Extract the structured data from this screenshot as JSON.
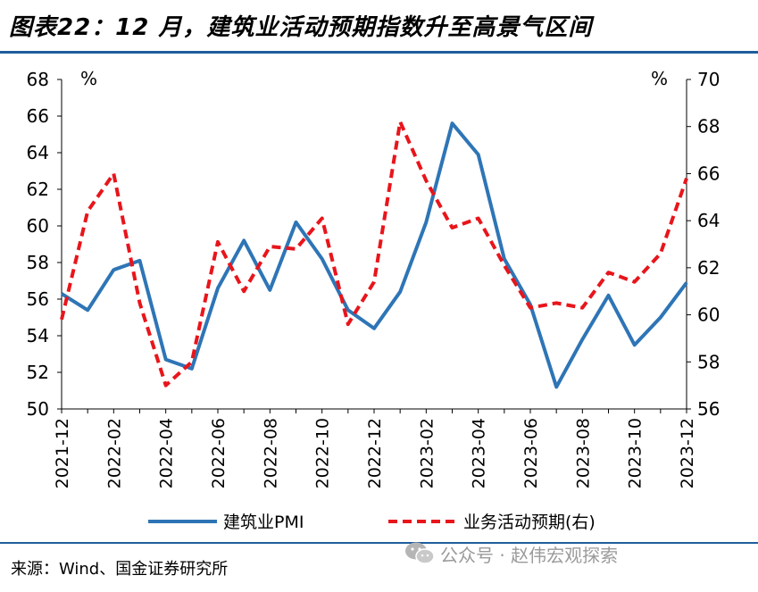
{
  "page": {
    "title": "图表22：12 月，建筑业活动预期指数升至高景气区间",
    "source": "来源：Wind、国金证券研究所",
    "watermark": "公众号 · 赵伟宏观探索",
    "watermark_icon": "wechat-bubble-icon"
  },
  "chart_data": {
    "type": "line",
    "x": [
      "2021-12",
      "2022-01",
      "2022-02",
      "2022-03",
      "2022-04",
      "2022-05",
      "2022-06",
      "2022-07",
      "2022-08",
      "2022-09",
      "2022-10",
      "2022-11",
      "2022-12",
      "2023-01",
      "2023-02",
      "2023-03",
      "2023-04",
      "2023-05",
      "2023-06",
      "2023-07",
      "2023-08",
      "2023-09",
      "2023-10",
      "2023-11",
      "2023-12"
    ],
    "x_tick_labels": [
      "2021-12",
      "2022-02",
      "2022-04",
      "2022-06",
      "2022-08",
      "2022-10",
      "2022-12",
      "2023-02",
      "2023-04",
      "2023-06",
      "2023-08",
      "2023-10",
      "2023-12"
    ],
    "y_left": {
      "unit": "%",
      "min": 50,
      "max": 68,
      "ticks": [
        "50",
        "52",
        "54",
        "56",
        "58",
        "60",
        "62",
        "64",
        "66",
        "68"
      ]
    },
    "y_right": {
      "unit": "%",
      "min": 56,
      "max": 70,
      "ticks": [
        "56",
        "58",
        "60",
        "62",
        "64",
        "66",
        "68",
        "70"
      ]
    },
    "series": [
      {
        "name": "建筑业PMI",
        "axis": "left",
        "color": "#2e75b6",
        "style": "solid",
        "values": [
          56.3,
          55.4,
          57.6,
          58.1,
          52.7,
          52.2,
          56.6,
          59.2,
          56.5,
          60.2,
          58.2,
          55.4,
          54.4,
          56.4,
          60.2,
          65.6,
          63.9,
          58.2,
          55.7,
          51.2,
          53.8,
          56.2,
          53.5,
          55.0,
          56.9
        ]
      },
      {
        "name": "业务活动预期(右)",
        "axis": "right",
        "color": "#e8151b",
        "style": "dashed",
        "values": [
          59.8,
          64.4,
          66.0,
          60.5,
          57.0,
          58.0,
          63.1,
          61.0,
          62.9,
          62.8,
          64.1,
          59.6,
          61.4,
          68.2,
          65.7,
          63.7,
          64.1,
          62.1,
          60.3,
          60.5,
          60.3,
          61.8,
          61.4,
          62.6,
          65.8
        ]
      }
    ],
    "legend": {
      "placement": "bottom"
    }
  }
}
